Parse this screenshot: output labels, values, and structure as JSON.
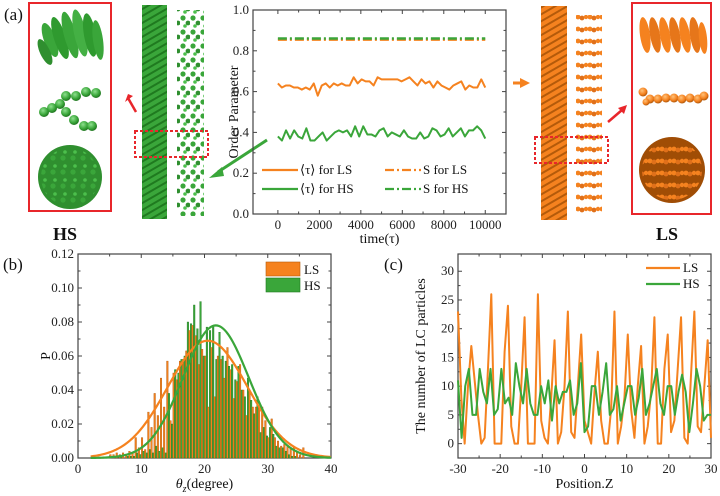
{
  "colors": {
    "orange": "#f5821f",
    "green": "#3aa63a",
    "red": "#e8262b",
    "axis": "#444444",
    "orange_dark": "#b45a0a",
    "green_dark": "#1f7a1f"
  },
  "chart_data": [
    {
      "id": "a",
      "panel_label": "(a)",
      "type": "line",
      "title": "",
      "xlabel": "time(τ)",
      "ylabel": "Order Parameter",
      "xlim": [
        -1200,
        11000
      ],
      "ylim": [
        0.0,
        1.0
      ],
      "xticks": [
        0,
        2000,
        4000,
        6000,
        8000,
        10000
      ],
      "xtick_labels": [
        "0",
        "2000",
        "4000",
        "6000",
        "8000",
        "10000"
      ],
      "yticks": [
        0.0,
        0.2,
        0.4,
        0.6,
        0.8,
        1.0
      ],
      "ytick_labels": [
        "0.0",
        "0.2",
        "0.4",
        "0.6",
        "0.8",
        "1.0"
      ],
      "legend_position": "bottom",
      "series": [
        {
          "name": "⟨τ⟩ for LS",
          "style": "solid",
          "color_key": "orange",
          "x_start": 0,
          "x_step": 200,
          "values": [
            0.64,
            0.62,
            0.63,
            0.63,
            0.62,
            0.62,
            0.61,
            0.62,
            0.61,
            0.64,
            0.58,
            0.63,
            0.64,
            0.62,
            0.64,
            0.63,
            0.64,
            0.63,
            0.63,
            0.67,
            0.64,
            0.66,
            0.65,
            0.65,
            0.63,
            0.67,
            0.66,
            0.66,
            0.66,
            0.66,
            0.66,
            0.65,
            0.66,
            0.67,
            0.65,
            0.63,
            0.66,
            0.64,
            0.65,
            0.62,
            0.65,
            0.63,
            0.62,
            0.61,
            0.63,
            0.64,
            0.65,
            0.61,
            0.63,
            0.62,
            0.62,
            0.66,
            0.62
          ]
        },
        {
          "name": "⟨τ⟩ for HS",
          "style": "solid",
          "color_key": "green",
          "x_start": 0,
          "x_step": 200,
          "values": [
            0.38,
            0.36,
            0.41,
            0.37,
            0.41,
            0.38,
            0.37,
            0.42,
            0.36,
            0.36,
            0.38,
            0.4,
            0.36,
            0.38,
            0.4,
            0.41,
            0.4,
            0.41,
            0.38,
            0.43,
            0.38,
            0.43,
            0.39,
            0.39,
            0.38,
            0.41,
            0.42,
            0.38,
            0.4,
            0.39,
            0.38,
            0.41,
            0.38,
            0.37,
            0.37,
            0.4,
            0.37,
            0.38,
            0.42,
            0.41,
            0.38,
            0.39,
            0.42,
            0.38,
            0.4,
            0.42,
            0.38,
            0.41,
            0.41,
            0.43,
            0.41,
            0.37
          ]
        },
        {
          "name": "S for LS",
          "style": "dashdot",
          "color_key": "orange",
          "x": [
            0,
            10000
          ],
          "values": [
            0.855,
            0.855
          ]
        },
        {
          "name": "S for HS",
          "style": "dashdot",
          "color_key": "green",
          "x": [
            0,
            10000
          ],
          "values": [
            0.86,
            0.86
          ]
        }
      ]
    },
    {
      "id": "b",
      "panel_label": "(b)",
      "type": "bar",
      "title": "",
      "xlabel": "θz(degree)",
      "xlabel_main": "θ",
      "xlabel_sub": "z",
      "xlabel_rest": "(degree)",
      "ylabel": "P",
      "xlim": [
        0,
        40
      ],
      "ylim": [
        0.0,
        0.12
      ],
      "xticks": [
        0,
        10,
        20,
        30,
        40
      ],
      "xtick_labels": [
        "0",
        "10",
        "20",
        "30",
        "40"
      ],
      "yticks": [
        0.0,
        0.02,
        0.04,
        0.06,
        0.08,
        0.1,
        0.12
      ],
      "ytick_labels": [
        "0.00",
        "0.02",
        "0.04",
        "0.06",
        "0.08",
        "0.10",
        "0.12"
      ],
      "legend_position": "top-right",
      "bin_start": 5,
      "bin_width": 0.5,
      "series": [
        {
          "name": "LS",
          "color_key": "orange",
          "values": [
            0.002,
            0.002,
            0.003,
            0.002,
            0.003,
            0.002,
            0.004,
            0.003,
            0.012,
            0.006,
            0.012,
            0.005,
            0.027,
            0.018,
            0.038,
            0.025,
            0.047,
            0.03,
            0.057,
            0.022,
            0.05,
            0.046,
            0.057,
            0.058,
            0.063,
            0.075,
            0.078,
            0.072,
            0.055,
            0.064,
            0.06,
            0.03,
            0.065,
            0.036,
            0.06,
            0.058,
            0.047,
            0.065,
            0.052,
            0.035,
            0.045,
            0.055,
            0.04,
            0.025,
            0.04,
            0.03,
            0.03,
            0.03,
            0.03,
            0.022,
            0.012,
            0.023,
            0.012,
            0.01,
            0.007,
            0.008,
            0.007,
            0.006,
            0.006,
            0.004,
            0.002,
            0.006
          ]
        },
        {
          "name": "HS",
          "color_key": "green",
          "values": [
            0.0,
            0.0,
            0.0,
            0.001,
            0.0,
            0.001,
            0.001,
            0.001,
            0.003,
            0.002,
            0.004,
            0.003,
            0.005,
            0.003,
            0.007,
            0.004,
            0.006,
            0.003,
            0.038,
            0.02,
            0.052,
            0.05,
            0.058,
            0.06,
            0.08,
            0.079,
            0.09,
            0.076,
            0.092,
            0.06,
            0.077,
            0.075,
            0.078,
            0.058,
            0.074,
            0.06,
            0.057,
            0.054,
            0.055,
            0.046,
            0.054,
            0.04,
            0.036,
            0.047,
            0.034,
            0.026,
            0.036,
            0.015,
            0.018,
            0.013,
            0.018,
            0.014,
            0.007,
            0.006,
            0.006,
            0.004,
            0.002,
            0.001,
            0.001,
            0.0,
            0.0,
            0.0
          ]
        }
      ],
      "fits": [
        {
          "name": "LS fit",
          "color_key": "orange",
          "amplitude": 0.069,
          "mean": 20.5,
          "sigma": 6.3
        },
        {
          "name": "HS fit",
          "color_key": "green",
          "amplitude": 0.078,
          "mean": 21.8,
          "sigma": 5.2
        }
      ]
    },
    {
      "id": "c",
      "panel_label": "(c)",
      "type": "line",
      "title": "",
      "xlabel": "Position.Z",
      "ylabel": "The number of LC particles",
      "xlim": [
        -30,
        30
      ],
      "ylim": [
        -2.5,
        33
      ],
      "xticks": [
        -30,
        -20,
        -10,
        0,
        10,
        20,
        30
      ],
      "xtick_labels": [
        "-30",
        "-20",
        "-10",
        "0",
        "10",
        "20",
        "30"
      ],
      "yticks": [
        0,
        5,
        10,
        15,
        20,
        25,
        30
      ],
      "ytick_labels": [
        "0",
        "5",
        "10",
        "15",
        "20",
        "25",
        "30"
      ],
      "legend_position": "top-right",
      "x_start": -30,
      "x_step": 0.7,
      "series": [
        {
          "name": "LS",
          "color_key": "orange",
          "values": [
            23,
            8,
            0,
            10,
            17,
            11,
            5,
            0,
            1,
            13,
            26,
            0,
            0,
            0,
            16,
            24,
            3,
            0,
            0,
            10,
            22,
            0,
            0,
            0,
            26,
            4,
            1,
            0,
            8,
            18,
            0,
            2,
            10,
            23,
            2,
            1,
            10,
            19,
            4,
            2,
            0,
            9,
            16,
            4,
            0,
            0,
            6,
            23,
            0,
            3,
            8,
            19,
            6,
            1,
            10,
            17,
            0,
            3,
            9,
            22,
            0,
            0,
            13,
            19,
            2,
            4,
            13,
            22,
            1,
            0,
            12,
            23,
            3,
            2,
            10,
            18,
            1
          ]
        },
        {
          "name": "HS",
          "color_key": "green",
          "values": [
            11,
            1,
            10,
            13,
            5,
            5,
            13,
            9,
            7,
            13,
            5,
            6,
            13,
            7,
            8,
            5,
            14,
            10,
            7,
            13,
            7,
            5,
            5,
            10,
            7,
            11,
            4,
            10,
            7,
            9,
            9,
            11,
            5,
            7,
            14,
            2,
            3,
            10,
            10,
            5,
            9,
            14,
            5,
            6,
            10,
            4,
            7,
            10,
            10,
            5,
            8,
            13,
            5,
            7,
            10,
            13,
            7,
            5,
            10,
            10,
            5,
            9,
            12,
            9,
            2,
            7,
            13,
            10,
            4,
            5,
            5
          ]
        }
      ]
    }
  ],
  "labels": {
    "hs_title": "HS",
    "ls_title": "LS"
  }
}
